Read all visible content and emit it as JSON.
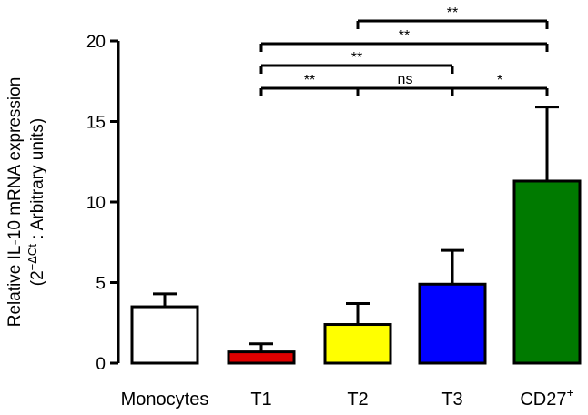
{
  "chart_data": {
    "type": "bar",
    "categories": [
      "Monocytes",
      "T1",
      "T2",
      "T3",
      "CD27"
    ],
    "category_superscripts": [
      "",
      "",
      "",
      "",
      "+"
    ],
    "values": [
      3.5,
      0.7,
      2.4,
      4.9,
      11.3
    ],
    "errors": [
      0.8,
      0.5,
      1.3,
      2.1,
      4.6
    ],
    "bar_colors": [
      "#ffffff",
      "#e00000",
      "#ffff00",
      "#0000ff",
      "#007a00"
    ],
    "ylabel_line1": "Relative IL-10 mRNA expression",
    "ylabel_line2_prefix": "(2",
    "ylabel_line2_sup": "−ΔCt",
    "ylabel_line2_suffix": " : Arbitrary units)",
    "ylim": [
      0,
      20
    ],
    "yticks": [
      0,
      5,
      10,
      15,
      20
    ],
    "grid": false,
    "significance": [
      {
        "from": 1,
        "to": 2,
        "label": "**",
        "level": 0
      },
      {
        "from": 2,
        "to": 3,
        "label": "ns",
        "level": 0
      },
      {
        "from": 3,
        "to": 4,
        "label": "*",
        "level": 0
      },
      {
        "from": 1,
        "to": 3,
        "label": "**",
        "level": 1
      },
      {
        "from": 1,
        "to": 4,
        "label": "**",
        "level": 2
      },
      {
        "from": 2,
        "to": 4,
        "label": "**",
        "level": 3
      }
    ]
  }
}
